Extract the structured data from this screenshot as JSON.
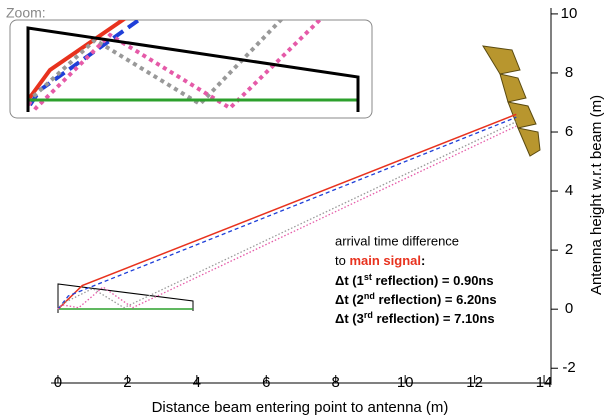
{
  "chart_data": {
    "type": "line",
    "xlabel": "Distance beam entering point to antenna (m)",
    "ylabel": "Antenna height w.r.t beam (m)",
    "xlim": [
      -0.2,
      14.2
    ],
    "ylim": [
      -2.5,
      10.2
    ],
    "xticks": [
      0,
      2,
      4,
      6,
      8,
      10,
      12,
      14
    ],
    "yticks": [
      -2,
      0,
      2,
      4,
      6,
      8,
      10
    ],
    "inset_label": "Zoom:",
    "series": [
      {
        "color": "#e8321e",
        "style": "solid",
        "x": [
          0,
          0.7,
          13.2
        ],
        "y": [
          0,
          0.8,
          6.6
        ]
      },
      {
        "color": "#1f3fd8",
        "style": "dashed",
        "x": [
          0,
          0.3,
          13.2
        ],
        "y": [
          0,
          0.45,
          6.5
        ]
      },
      {
        "color": "#999999",
        "style": "dotted",
        "x": [
          0,
          0.15,
          1.0,
          1.9,
          13.2
        ],
        "y": [
          0,
          0.2,
          0.7,
          0.05,
          6.35
        ]
      },
      {
        "color": "#e55aa8",
        "style": "dotted",
        "x": [
          0,
          0.1,
          0.6,
          1.3,
          2.15,
          13.2
        ],
        "y": [
          0,
          0.15,
          0.05,
          0.75,
          0.05,
          6.2
        ]
      }
    ],
    "annotation": {
      "line1": "arrival time difference",
      "to": "to",
      "main": "main signal",
      "colon": ":",
      "deltas": [
        {
          "pre": "Δt (1",
          "sup": "st",
          "post": " reflection) = 0.90ns"
        },
        {
          "pre": "Δt (2",
          "sup": "nd",
          "post": " reflection) = 6.20ns"
        },
        {
          "pre": "Δt (3",
          "sup": "rd",
          "post": " reflection) = 7.10ns"
        }
      ]
    }
  }
}
